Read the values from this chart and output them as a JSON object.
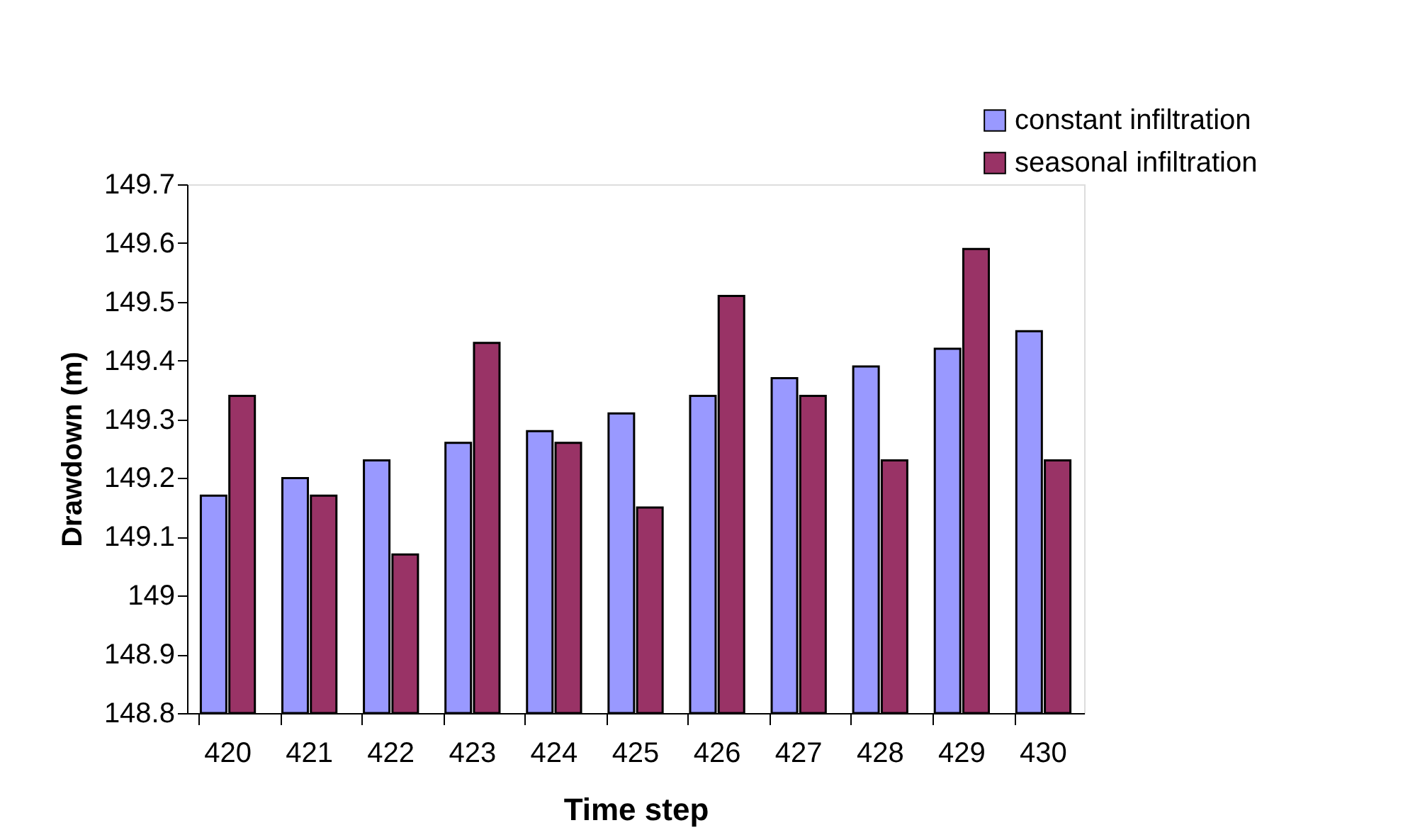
{
  "chart_data": {
    "type": "bar",
    "xlabel": "Time step",
    "ylabel": "Drawdown (m)",
    "categories": [
      "420",
      "421",
      "422",
      "423",
      "424",
      "425",
      "426",
      "427",
      "428",
      "429",
      "430"
    ],
    "series": [
      {
        "name": "constant infiltration",
        "color": "#9999ff",
        "values": [
          149.17,
          149.2,
          149.23,
          149.26,
          149.28,
          149.31,
          149.34,
          149.37,
          149.39,
          149.42,
          149.45
        ]
      },
      {
        "name": "seasonal infiltration",
        "color": "#993366",
        "values": [
          149.34,
          149.17,
          149.07,
          149.43,
          149.26,
          149.15,
          149.51,
          149.34,
          149.23,
          149.59,
          149.23
        ]
      }
    ],
    "ylim": [
      148.8,
      149.7
    ],
    "yticks": [
      148.8,
      148.9,
      149,
      149.1,
      149.2,
      149.3,
      149.4,
      149.5,
      149.6,
      149.7
    ],
    "grid": false,
    "legend": "top right"
  }
}
